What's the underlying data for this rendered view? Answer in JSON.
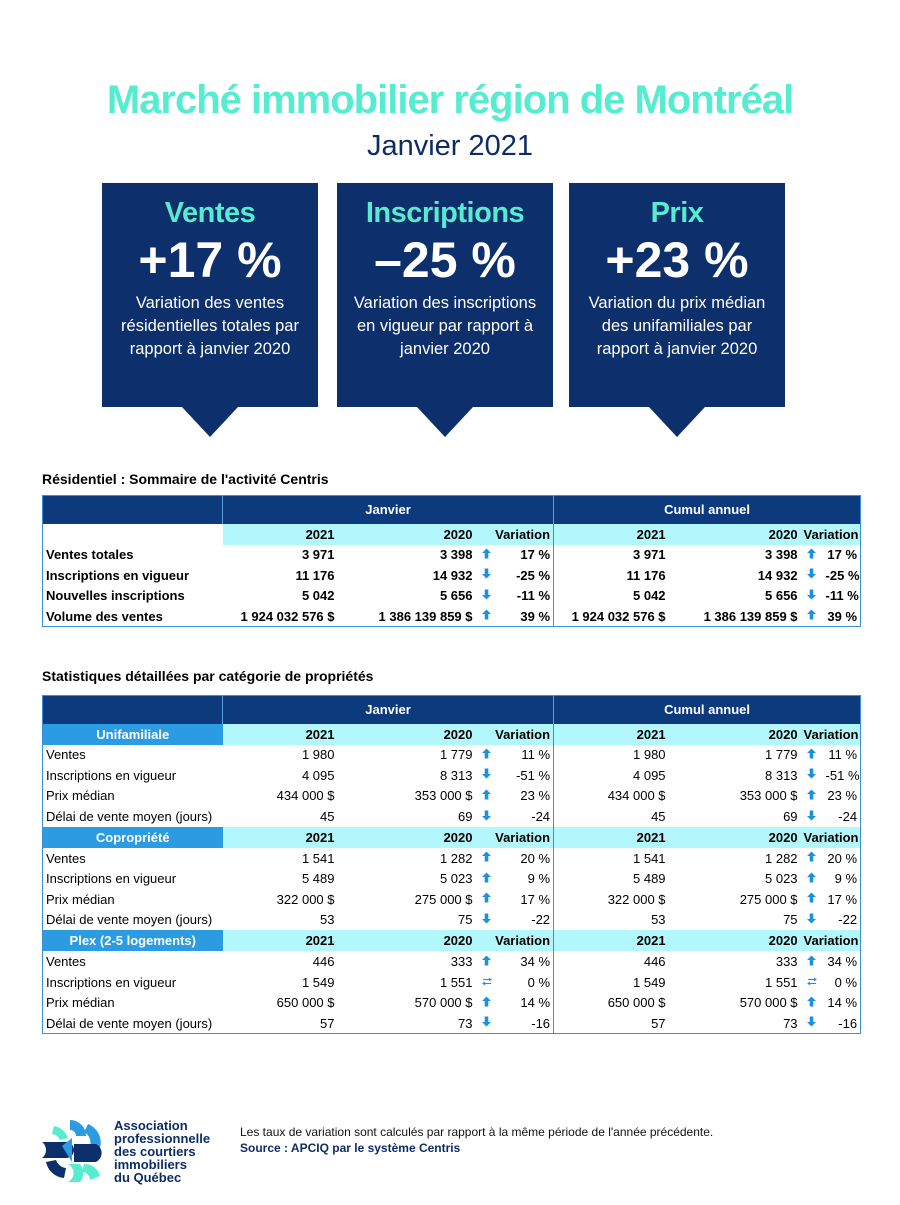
{
  "header": {
    "title": "Marché immobilier région de Montréal",
    "subtitle": "Janvier 2021"
  },
  "callouts": [
    {
      "title": "Ventes",
      "value": "+17 %",
      "desc": "Variation des ventes résidentielles totales par rapport à janvier 2020"
    },
    {
      "title": "Inscriptions",
      "value": "–25 %",
      "desc": "Variation des inscriptions en vigueur par rapport à janvier 2020"
    },
    {
      "title": "Prix",
      "value": "+23 %",
      "desc": "Variation du prix médian des unifamiliales par rapport à janvier 2020"
    }
  ],
  "colors": {
    "navy": "#0d2f6b",
    "mint": "#56ecd0",
    "cyan": "#b2f7fb",
    "blue": "#2b9be2",
    "arrow": "#1e90e0"
  },
  "table1": {
    "title": "Résidentiel : Sommaire de l'activité Centris",
    "groups": [
      "Janvier",
      "Cumul annuel"
    ],
    "cols": [
      "2021",
      "2020",
      "Variation",
      "2021",
      "2020",
      "Variation"
    ],
    "rows": [
      {
        "label": "Ventes totales",
        "v": [
          "3 971",
          "3 398",
          "up",
          "17 %",
          "3 971",
          "3 398",
          "up",
          "17 %"
        ]
      },
      {
        "label": "Inscriptions en vigueur",
        "v": [
          "11 176",
          "14 932",
          "down",
          "-25 %",
          "11 176",
          "14 932",
          "down",
          "-25 %"
        ]
      },
      {
        "label": "Nouvelles inscriptions",
        "v": [
          "5 042",
          "5 656",
          "down",
          "-11 %",
          "5 042",
          "5 656",
          "down",
          "-11 %"
        ]
      },
      {
        "label": "Volume des ventes",
        "v": [
          "1 924 032 576  $",
          "1 386 139 859  $",
          "up",
          "39 %",
          "1 924 032 576  $",
          "1 386 139 859  $",
          "up",
          "39 %"
        ]
      }
    ]
  },
  "table2": {
    "title": "Statistiques détaillées par catégorie de propriétés",
    "groups": [
      "Janvier",
      "Cumul annuel"
    ],
    "cols": [
      "2021",
      "2020",
      "Variation",
      "2021",
      "2020",
      "Variation"
    ],
    "sections": [
      {
        "name": "Unifamiliale",
        "rows": [
          {
            "label": "Ventes",
            "v": [
              "1 980",
              "1 779",
              "up",
              "11 %",
              "1 980",
              "1 779",
              "up",
              "11 %"
            ]
          },
          {
            "label": "Inscriptions en vigueur",
            "v": [
              "4 095",
              "8 313",
              "down",
              "-51 %",
              "4 095",
              "8 313",
              "down",
              "-51 %"
            ]
          },
          {
            "label": "Prix médian",
            "v": [
              "434 000 $",
              "353 000 $",
              "up",
              "23 %",
              "434 000 $",
              "353 000 $",
              "up",
              "23 %"
            ]
          },
          {
            "label": "Délai de vente moyen (jours)",
            "v": [
              "45",
              "69",
              "down",
              "-24",
              "45",
              "69",
              "down",
              "-24"
            ]
          }
        ]
      },
      {
        "name": "Copropriété",
        "rows": [
          {
            "label": "Ventes",
            "v": [
              "1 541",
              "1 282",
              "up",
              "20 %",
              "1 541",
              "1 282",
              "up",
              "20 %"
            ]
          },
          {
            "label": "Inscriptions en vigueur",
            "v": [
              "5 489",
              "5 023",
              "up",
              "9 %",
              "5 489",
              "5 023",
              "up",
              "9 %"
            ]
          },
          {
            "label": "Prix médian",
            "v": [
              "322 000 $",
              "275 000 $",
              "up",
              "17 %",
              "322 000 $",
              "275 000 $",
              "up",
              "17 %"
            ]
          },
          {
            "label": "Délai de vente moyen (jours)",
            "v": [
              "53",
              "75",
              "down",
              "-22",
              "53",
              "75",
              "down",
              "-22"
            ]
          }
        ]
      },
      {
        "name": "Plex (2-5 logements)",
        "rows": [
          {
            "label": "Ventes",
            "v": [
              "446",
              "333",
              "up",
              "34 %",
              "446",
              "333",
              "up",
              "34 %"
            ]
          },
          {
            "label": "Inscriptions en vigueur",
            "v": [
              "1 549",
              "1 551",
              "flat",
              "0 %",
              "1 549",
              "1 551",
              "flat",
              "0 %"
            ]
          },
          {
            "label": "Prix médian",
            "v": [
              "650 000 $",
              "570 000 $",
              "up",
              "14 %",
              "650 000 $",
              "570 000 $",
              "up",
              "14 %"
            ]
          },
          {
            "label": "Délai de vente moyen (jours)",
            "v": [
              "57",
              "73",
              "down",
              "-16",
              "57",
              "73",
              "down",
              "-16"
            ]
          }
        ]
      }
    ]
  },
  "footer": {
    "note": "Les taux de variation sont calculés par rapport à la même période de l'année précédente.",
    "source": "Source : APCIQ par le système Centris",
    "logo_text": [
      "Association",
      "professionnelle",
      "des courtiers",
      "immobiliers",
      "du Québec"
    ]
  }
}
